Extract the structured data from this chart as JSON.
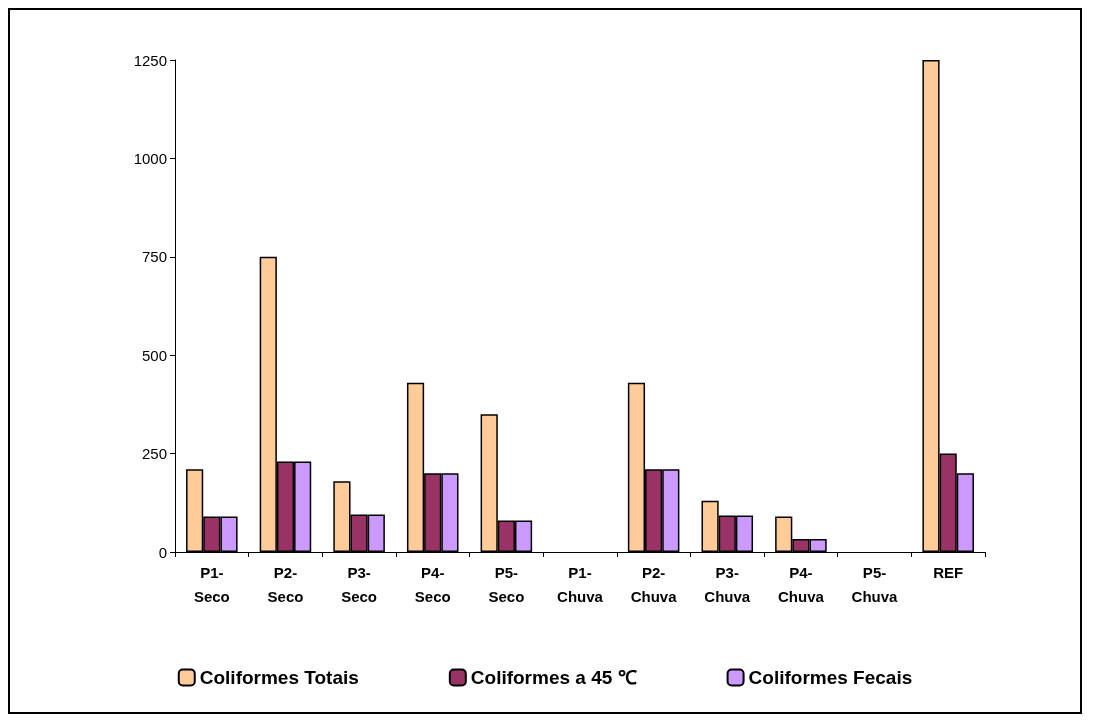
{
  "chart_data": {
    "type": "bar",
    "categories": [
      "P1-\nSeco",
      "P2-\nSeco",
      "P3-\nSeco",
      "P4-\nSeco",
      "P5-\nSeco",
      "P1-\nChuva",
      "P2-\nChuva",
      "P3-\nChuva",
      "P4-\nChuva",
      "P5-\nChuva",
      "REF"
    ],
    "series": [
      {
        "name": "Coliformes Totais",
        "color": "#ffcc99",
        "values": [
          210,
          750,
          180,
          430,
          350,
          0,
          430,
          130,
          90,
          0,
          1250
        ]
      },
      {
        "name": "Coliformes a 45 ℃",
        "color": "#993366",
        "values": [
          90,
          230,
          95,
          200,
          80,
          0,
          210,
          93,
          33,
          0,
          250
        ]
      },
      {
        "name": "Coliformes Fecais",
        "color": "#cc99ff",
        "values": [
          90,
          230,
          95,
          200,
          80,
          0,
          210,
          93,
          33,
          0,
          200
        ]
      }
    ],
    "ylim": [
      0,
      1250
    ],
    "yticks": [
      0,
      250,
      500,
      750,
      1000,
      1250
    ],
    "grid": false,
    "legend": "bottom"
  }
}
